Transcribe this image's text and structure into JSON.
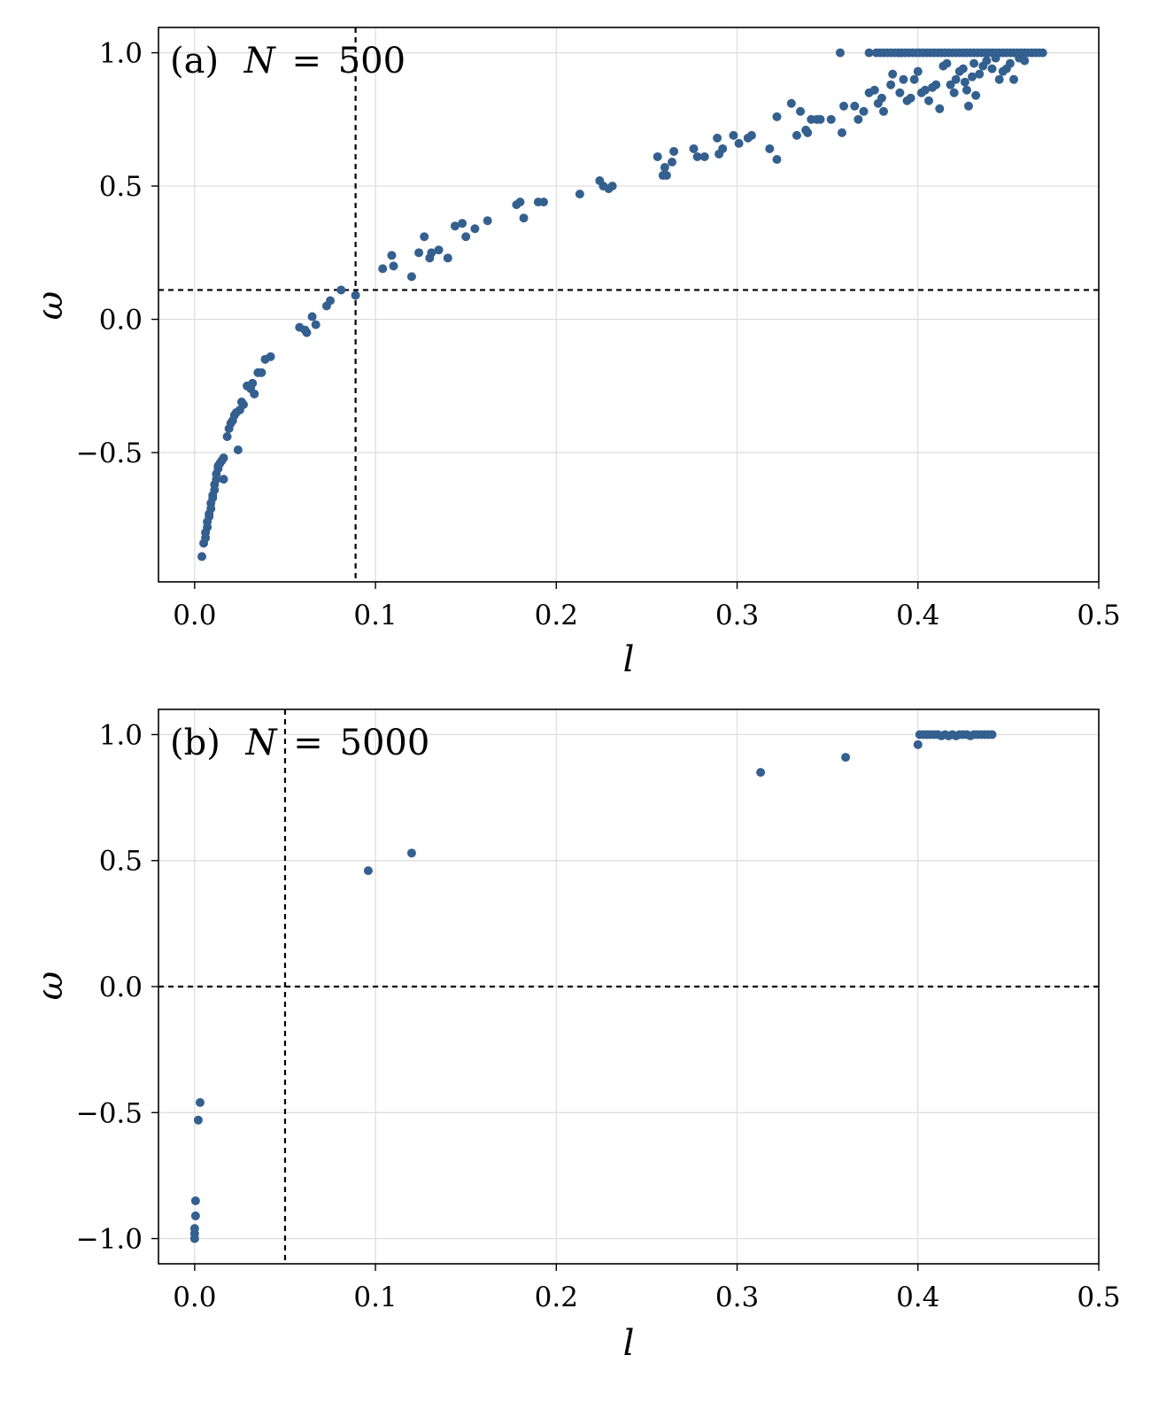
{
  "chart_data": [
    {
      "type": "scatter",
      "panel_label": "(a)",
      "annotation": "N = 500",
      "annotation_var": "N",
      "annotation_value": "500",
      "xlabel": "l",
      "ylabel": "ω",
      "xlim": [
        -0.02,
        0.5
      ],
      "ylim": [
        -0.985,
        1.095
      ],
      "xticks": [
        0.0,
        0.1,
        0.2,
        0.3,
        0.4,
        0.5
      ],
      "xtick_labels": [
        "0.0",
        "0.1",
        "0.2",
        "0.3",
        "0.4",
        "0.5"
      ],
      "yticks": [
        -0.5,
        0.0,
        0.5,
        1.0
      ],
      "ytick_labels": [
        "−0.5",
        "0.0",
        "0.5",
        "1.0"
      ],
      "grid": true,
      "marker_color": "#34608f",
      "vline": 0.089,
      "hline": 0.11,
      "points": [
        [
          0.004,
          -0.89
        ],
        [
          0.005,
          -0.84
        ],
        [
          0.006,
          -0.82
        ],
        [
          0.006,
          -0.8
        ],
        [
          0.007,
          -0.78
        ],
        [
          0.007,
          -0.76
        ],
        [
          0.008,
          -0.74
        ],
        [
          0.008,
          -0.73
        ],
        [
          0.009,
          -0.71
        ],
        [
          0.009,
          -0.69
        ],
        [
          0.01,
          -0.67
        ],
        [
          0.01,
          -0.66
        ],
        [
          0.011,
          -0.64
        ],
        [
          0.011,
          -0.62
        ],
        [
          0.012,
          -0.6
        ],
        [
          0.012,
          -0.58
        ],
        [
          0.013,
          -0.56
        ],
        [
          0.013,
          -0.55
        ],
        [
          0.014,
          -0.54
        ],
        [
          0.015,
          -0.53
        ],
        [
          0.016,
          -0.52
        ],
        [
          0.016,
          -0.6
        ],
        [
          0.018,
          -0.44
        ],
        [
          0.019,
          -0.41
        ],
        [
          0.02,
          -0.39
        ],
        [
          0.021,
          -0.38
        ],
        [
          0.022,
          -0.36
        ],
        [
          0.023,
          -0.35
        ],
        [
          0.024,
          -0.49
        ],
        [
          0.025,
          -0.34
        ],
        [
          0.026,
          -0.31
        ],
        [
          0.027,
          -0.32
        ],
        [
          0.029,
          -0.25
        ],
        [
          0.031,
          -0.26
        ],
        [
          0.032,
          -0.24
        ],
        [
          0.033,
          -0.28
        ],
        [
          0.035,
          -0.2
        ],
        [
          0.037,
          -0.2
        ],
        [
          0.039,
          -0.15
        ],
        [
          0.042,
          -0.14
        ],
        [
          0.058,
          -0.03
        ],
        [
          0.061,
          -0.04
        ],
        [
          0.062,
          -0.05
        ],
        [
          0.065,
          0.01
        ],
        [
          0.067,
          -0.02
        ],
        [
          0.073,
          0.05
        ],
        [
          0.075,
          0.07
        ],
        [
          0.081,
          0.11
        ],
        [
          0.089,
          0.09
        ],
        [
          0.104,
          0.19
        ],
        [
          0.109,
          0.24
        ],
        [
          0.11,
          0.2
        ],
        [
          0.12,
          0.16
        ],
        [
          0.124,
          0.25
        ],
        [
          0.127,
          0.31
        ],
        [
          0.13,
          0.23
        ],
        [
          0.131,
          0.25
        ],
        [
          0.135,
          0.26
        ],
        [
          0.14,
          0.23
        ],
        [
          0.144,
          0.35
        ],
        [
          0.148,
          0.36
        ],
        [
          0.15,
          0.31
        ],
        [
          0.155,
          0.34
        ],
        [
          0.162,
          0.37
        ],
        [
          0.178,
          0.43
        ],
        [
          0.18,
          0.44
        ],
        [
          0.182,
          0.38
        ],
        [
          0.19,
          0.44
        ],
        [
          0.193,
          0.44
        ],
        [
          0.213,
          0.47
        ],
        [
          0.224,
          0.52
        ],
        [
          0.226,
          0.5
        ],
        [
          0.229,
          0.49
        ],
        [
          0.231,
          0.5
        ],
        [
          0.256,
          0.61
        ],
        [
          0.259,
          0.54
        ],
        [
          0.26,
          0.57
        ],
        [
          0.261,
          0.54
        ],
        [
          0.264,
          0.59
        ],
        [
          0.265,
          0.63
        ],
        [
          0.276,
          0.64
        ],
        [
          0.278,
          0.61
        ],
        [
          0.282,
          0.61
        ],
        [
          0.289,
          0.68
        ],
        [
          0.29,
          0.62
        ],
        [
          0.292,
          0.64
        ],
        [
          0.298,
          0.69
        ],
        [
          0.301,
          0.66
        ],
        [
          0.306,
          0.68
        ],
        [
          0.308,
          0.69
        ],
        [
          0.318,
          0.64
        ],
        [
          0.322,
          0.6
        ],
        [
          0.322,
          0.76
        ],
        [
          0.33,
          0.81
        ],
        [
          0.333,
          0.69
        ],
        [
          0.335,
          0.78
        ],
        [
          0.338,
          0.71
        ],
        [
          0.339,
          0.7
        ],
        [
          0.341,
          0.75
        ],
        [
          0.344,
          0.75
        ],
        [
          0.346,
          0.75
        ],
        [
          0.352,
          0.75
        ],
        [
          0.358,
          0.7
        ],
        [
          0.359,
          0.8
        ],
        [
          0.365,
          0.8
        ],
        [
          0.367,
          0.75
        ],
        [
          0.37,
          0.78
        ],
        [
          0.373,
          0.85
        ],
        [
          0.376,
          0.86
        ],
        [
          0.378,
          0.81
        ],
        [
          0.38,
          0.83
        ],
        [
          0.381,
          0.78
        ],
        [
          0.385,
          0.88
        ],
        [
          0.386,
          0.92
        ],
        [
          0.39,
          0.85
        ],
        [
          0.392,
          0.9
        ],
        [
          0.394,
          0.82
        ],
        [
          0.396,
          0.83
        ],
        [
          0.398,
          0.9
        ],
        [
          0.4,
          0.93
        ],
        [
          0.402,
          0.85
        ],
        [
          0.404,
          0.86
        ],
        [
          0.406,
          0.82
        ],
        [
          0.408,
          0.87
        ],
        [
          0.41,
          0.88
        ],
        [
          0.412,
          0.79
        ],
        [
          0.414,
          0.95
        ],
        [
          0.416,
          0.96
        ],
        [
          0.418,
          0.88
        ],
        [
          0.42,
          0.85
        ],
        [
          0.421,
          0.9
        ],
        [
          0.423,
          0.93
        ],
        [
          0.425,
          0.94
        ],
        [
          0.426,
          0.89
        ],
        [
          0.427,
          0.86
        ],
        [
          0.428,
          0.8
        ],
        [
          0.43,
          0.91
        ],
        [
          0.431,
          0.96
        ],
        [
          0.432,
          0.84
        ],
        [
          0.434,
          0.92
        ],
        [
          0.436,
          0.95
        ],
        [
          0.438,
          0.97
        ],
        [
          0.441,
          0.94
        ],
        [
          0.443,
          0.98
        ],
        [
          0.445,
          0.9
        ],
        [
          0.447,
          0.93
        ],
        [
          0.449,
          0.94
        ],
        [
          0.451,
          0.96
        ],
        [
          0.453,
          0.9
        ],
        [
          0.456,
          0.98
        ],
        [
          0.459,
          0.97
        ],
        [
          0.357,
          1.0
        ],
        [
          0.373,
          1.0
        ],
        [
          0.377,
          1.0
        ],
        [
          0.379,
          1.0
        ],
        [
          0.381,
          1.0
        ],
        [
          0.383,
          1.0
        ],
        [
          0.385,
          1.0
        ],
        [
          0.387,
          1.0
        ],
        [
          0.389,
          1.0
        ],
        [
          0.391,
          1.0
        ],
        [
          0.393,
          1.0
        ],
        [
          0.395,
          1.0
        ],
        [
          0.397,
          1.0
        ],
        [
          0.399,
          1.0
        ],
        [
          0.401,
          1.0
        ],
        [
          0.403,
          1.0
        ],
        [
          0.405,
          1.0
        ],
        [
          0.407,
          1.0
        ],
        [
          0.409,
          1.0
        ],
        [
          0.411,
          1.0
        ],
        [
          0.413,
          1.0
        ],
        [
          0.415,
          1.0
        ],
        [
          0.417,
          1.0
        ],
        [
          0.419,
          1.0
        ],
        [
          0.421,
          1.0
        ],
        [
          0.423,
          1.0
        ],
        [
          0.425,
          1.0
        ],
        [
          0.427,
          1.0
        ],
        [
          0.429,
          1.0
        ],
        [
          0.431,
          1.0
        ],
        [
          0.433,
          1.0
        ],
        [
          0.435,
          1.0
        ],
        [
          0.437,
          1.0
        ],
        [
          0.439,
          1.0
        ],
        [
          0.441,
          1.0
        ],
        [
          0.443,
          1.0
        ],
        [
          0.445,
          1.0
        ],
        [
          0.447,
          1.0
        ],
        [
          0.449,
          1.0
        ],
        [
          0.451,
          1.0
        ],
        [
          0.453,
          1.0
        ],
        [
          0.455,
          1.0
        ],
        [
          0.457,
          1.0
        ],
        [
          0.459,
          1.0
        ],
        [
          0.461,
          1.0
        ],
        [
          0.463,
          1.0
        ],
        [
          0.465,
          1.0
        ],
        [
          0.467,
          1.0
        ],
        [
          0.469,
          1.0
        ]
      ]
    },
    {
      "type": "scatter",
      "panel_label": "(b)",
      "annotation": "N = 5000",
      "annotation_var": "N",
      "annotation_value": "5000",
      "xlabel": "l",
      "ylabel": "ω",
      "xlim": [
        -0.02,
        0.5
      ],
      "ylim": [
        -1.1,
        1.1
      ],
      "xticks": [
        0.0,
        0.1,
        0.2,
        0.3,
        0.4,
        0.5
      ],
      "xtick_labels": [
        "0.0",
        "0.1",
        "0.2",
        "0.3",
        "0.4",
        "0.5"
      ],
      "yticks": [
        -1.0,
        -0.5,
        0.0,
        0.5,
        1.0
      ],
      "ytick_labels": [
        "−1.0",
        "−0.5",
        "0.0",
        "0.5",
        "1.0"
      ],
      "grid": true,
      "marker_color": "#34608f",
      "vline": 0.05,
      "hline": 0.0,
      "points": [
        [
          0.0,
          -1.0
        ],
        [
          0.0,
          -0.98
        ],
        [
          0.0,
          -0.96
        ],
        [
          0.0005,
          -0.91
        ],
        [
          0.0005,
          -0.85
        ],
        [
          0.002,
          -0.53
        ],
        [
          0.003,
          -0.46
        ],
        [
          0.096,
          0.46
        ],
        [
          0.12,
          0.53
        ],
        [
          0.313,
          0.85
        ],
        [
          0.36,
          0.91
        ],
        [
          0.4,
          0.96
        ],
        [
          0.401,
          1.0
        ],
        [
          0.403,
          1.0
        ],
        [
          0.405,
          1.0
        ],
        [
          0.407,
          1.0
        ],
        [
          0.409,
          1.0
        ],
        [
          0.411,
          1.0
        ],
        [
          0.413,
          0.995
        ],
        [
          0.415,
          1.0
        ],
        [
          0.417,
          0.995
        ],
        [
          0.419,
          1.0
        ],
        [
          0.421,
          0.995
        ],
        [
          0.423,
          1.0
        ],
        [
          0.425,
          1.0
        ],
        [
          0.427,
          1.0
        ],
        [
          0.429,
          0.995
        ],
        [
          0.431,
          1.0
        ],
        [
          0.433,
          1.0
        ],
        [
          0.435,
          1.0
        ],
        [
          0.437,
          1.0
        ],
        [
          0.439,
          1.0
        ],
        [
          0.441,
          1.0
        ]
      ]
    }
  ]
}
